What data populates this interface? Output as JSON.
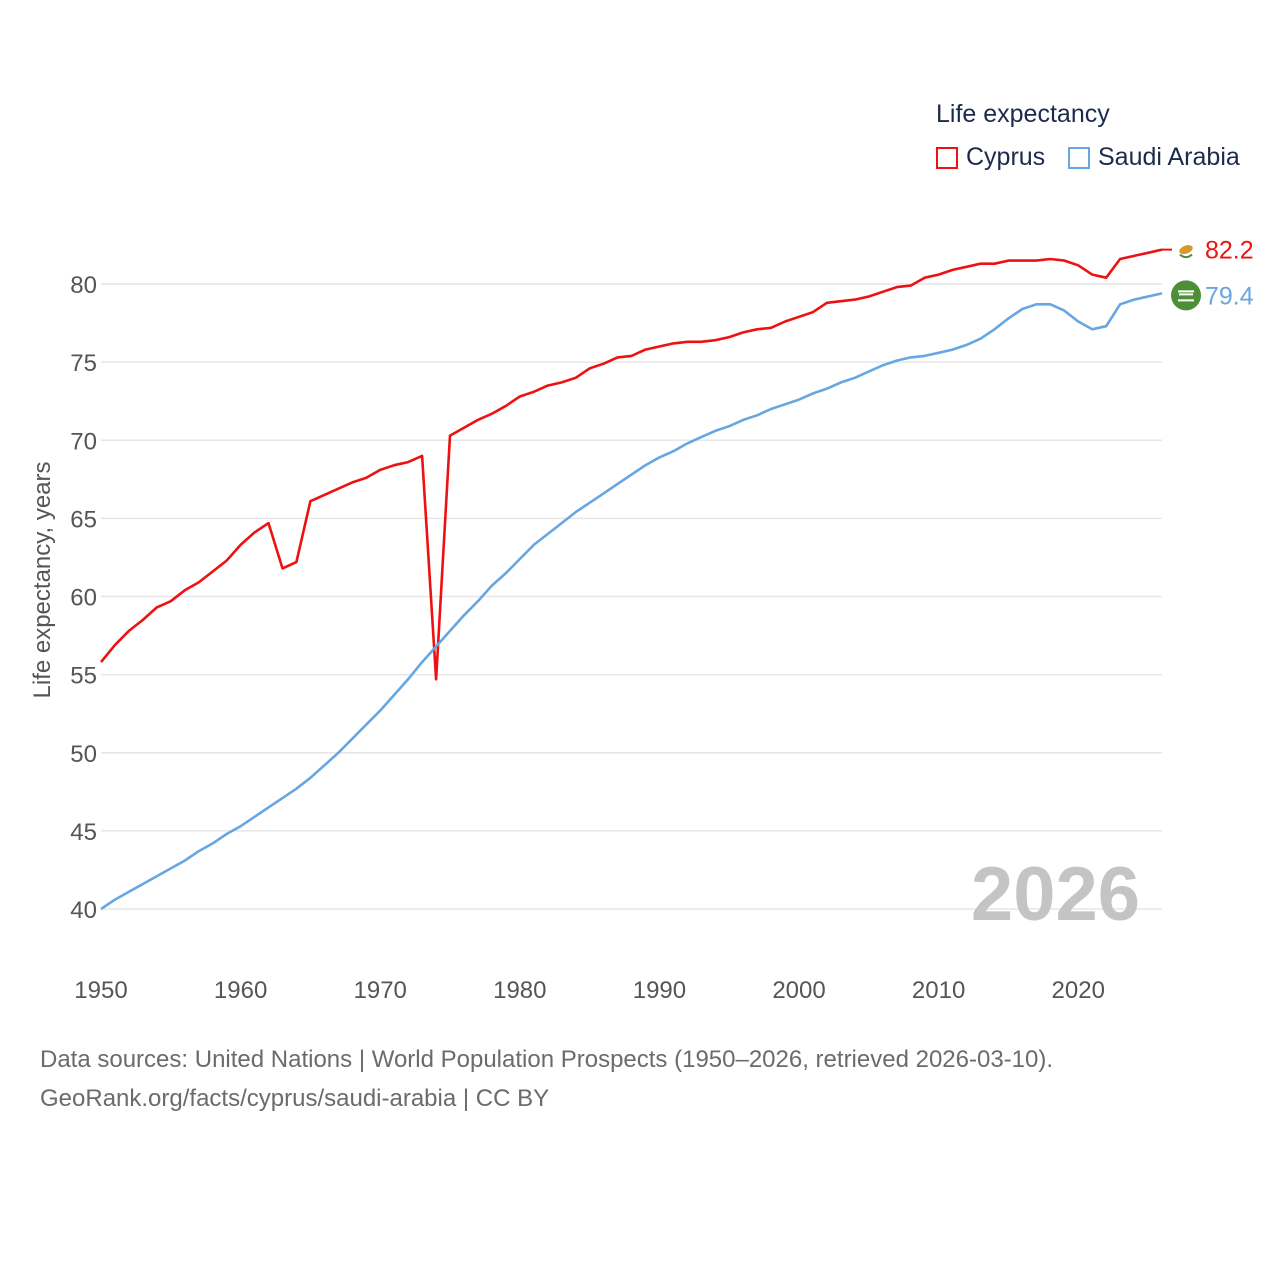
{
  "legend": {
    "title": "Life expectancy",
    "items": [
      {
        "label": "Cyprus",
        "color": "#ee1111"
      },
      {
        "label": "Saudi Arabia",
        "color": "#66a6e2"
      }
    ]
  },
  "footer": {
    "line1": "Data sources: United Nations | World Population Prospects (1950–2026, retrieved 2026-03-10).",
    "line2": "GeoRank.org/facts/cyprus/saudi-arabia | CC BY"
  },
  "chart_data": {
    "type": "line",
    "title": "Life expectancy",
    "ylabel": "Life expectancy, years",
    "xlabel": "",
    "xlim": [
      1950,
      2026
    ],
    "ylim": [
      40,
      82.5
    ],
    "yticks": [
      40,
      45,
      50,
      55,
      60,
      65,
      70,
      75,
      80
    ],
    "xticks": [
      1950,
      1960,
      1970,
      1980,
      1990,
      2000,
      2010,
      2020
    ],
    "year_label": "2026",
    "grid": true,
    "series": [
      {
        "name": "Cyprus",
        "color": "#ee1111",
        "end_label": "82.2",
        "icon": "cyprus-flag-icon",
        "x": [
          1950,
          1951,
          1952,
          1953,
          1954,
          1955,
          1956,
          1957,
          1958,
          1959,
          1960,
          1961,
          1962,
          1963,
          1964,
          1965,
          1966,
          1967,
          1968,
          1969,
          1970,
          1971,
          1972,
          1973,
          1974,
          1975,
          1976,
          1977,
          1978,
          1979,
          1980,
          1981,
          1982,
          1983,
          1984,
          1985,
          1986,
          1987,
          1988,
          1989,
          1990,
          1991,
          1992,
          1993,
          1994,
          1995,
          1996,
          1997,
          1998,
          1999,
          2000,
          2001,
          2002,
          2003,
          2004,
          2005,
          2006,
          2007,
          2008,
          2009,
          2010,
          2011,
          2012,
          2013,
          2014,
          2015,
          2016,
          2017,
          2018,
          2019,
          2020,
          2021,
          2022,
          2023,
          2024,
          2025,
          2026
        ],
        "y": [
          55.8,
          56.9,
          57.8,
          58.5,
          59.3,
          59.7,
          60.4,
          60.9,
          61.6,
          62.3,
          63.3,
          64.1,
          64.7,
          61.8,
          62.2,
          66.1,
          66.5,
          66.9,
          67.3,
          67.6,
          68.1,
          68.4,
          68.6,
          69.0,
          54.7,
          70.3,
          70.8,
          71.3,
          71.7,
          72.2,
          72.8,
          73.1,
          73.5,
          73.7,
          74.0,
          74.6,
          74.9,
          75.3,
          75.4,
          75.8,
          76.0,
          76.2,
          76.3,
          76.3,
          76.4,
          76.6,
          76.9,
          77.1,
          77.2,
          77.6,
          77.9,
          78.2,
          78.8,
          78.9,
          79.0,
          79.2,
          79.5,
          79.8,
          79.9,
          80.4,
          80.6,
          80.9,
          81.1,
          81.3,
          81.3,
          81.5,
          81.5,
          81.5,
          81.6,
          81.5,
          81.2,
          80.6,
          80.4,
          81.6,
          81.8,
          82.0,
          82.2
        ]
      },
      {
        "name": "Saudi Arabia",
        "color": "#66a6e2",
        "end_label": "79.4",
        "icon": "saudi-arabia-flag-icon",
        "x": [
          1950,
          1951,
          1952,
          1953,
          1954,
          1955,
          1956,
          1957,
          1958,
          1959,
          1960,
          1961,
          1962,
          1963,
          1964,
          1965,
          1966,
          1967,
          1968,
          1969,
          1970,
          1971,
          1972,
          1973,
          1974,
          1975,
          1976,
          1977,
          1978,
          1979,
          1980,
          1981,
          1982,
          1983,
          1984,
          1985,
          1986,
          1987,
          1988,
          1989,
          1990,
          1991,
          1992,
          1993,
          1994,
          1995,
          1996,
          1997,
          1998,
          1999,
          2000,
          2001,
          2002,
          2003,
          2004,
          2005,
          2006,
          2007,
          2008,
          2009,
          2010,
          2011,
          2012,
          2013,
          2014,
          2015,
          2016,
          2017,
          2018,
          2019,
          2020,
          2021,
          2022,
          2023,
          2024,
          2025,
          2026
        ],
        "y": [
          40.0,
          40.6,
          41.1,
          41.6,
          42.1,
          42.6,
          43.1,
          43.7,
          44.2,
          44.8,
          45.3,
          45.9,
          46.5,
          47.1,
          47.7,
          48.4,
          49.2,
          50.0,
          50.9,
          51.8,
          52.7,
          53.7,
          54.7,
          55.8,
          56.8,
          57.8,
          58.8,
          59.7,
          60.7,
          61.5,
          62.4,
          63.3,
          64.0,
          64.7,
          65.4,
          66.0,
          66.6,
          67.2,
          67.8,
          68.4,
          68.9,
          69.3,
          69.8,
          70.2,
          70.6,
          70.9,
          71.3,
          71.6,
          72.0,
          72.3,
          72.6,
          73.0,
          73.3,
          73.7,
          74.0,
          74.4,
          74.8,
          75.1,
          75.3,
          75.4,
          75.6,
          75.8,
          76.1,
          76.5,
          77.1,
          77.8,
          78.4,
          78.7,
          78.7,
          78.3,
          77.6,
          77.1,
          77.3,
          78.7,
          79.0,
          79.2,
          79.4
        ]
      }
    ]
  }
}
